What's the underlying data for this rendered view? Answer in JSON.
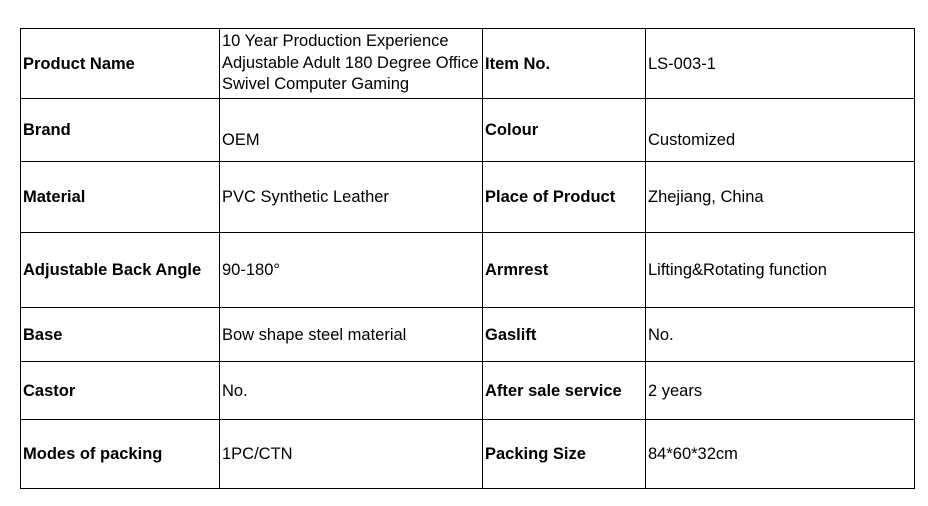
{
  "rows": [
    {
      "l1": "Product Name",
      "v1": "10 Year Production Experience Adjustable Adult 180 Degree Office Swivel Computer Gaming",
      "l2": "Item No.",
      "v2": "LS-003-1"
    },
    {
      "l1": "Brand",
      "v1": "OEM",
      "l2": "Colour",
      "v2": "Customized"
    },
    {
      "l1": "Material",
      "v1": "PVC Synthetic Leather",
      "l2": "Place of Product",
      "v2": "Zhejiang, China"
    },
    {
      "l1": "Adjustable Back Angle",
      "v1": "90-180°",
      "l2": "Armrest",
      "v2": "Lifting&Rotating function"
    },
    {
      "l1": "Base",
      "v1": "Bow shape steel material",
      "l2": "Gaslift",
      "v2": "No."
    },
    {
      "l1": "Castor",
      "v1": "No.",
      "l2": "After sale service",
      "v2": "2 years"
    },
    {
      "l1": "Modes of packing",
      "v1": "1PC/CTN",
      "l2": "Packing Size",
      "v2": "84*60*32cm"
    }
  ]
}
